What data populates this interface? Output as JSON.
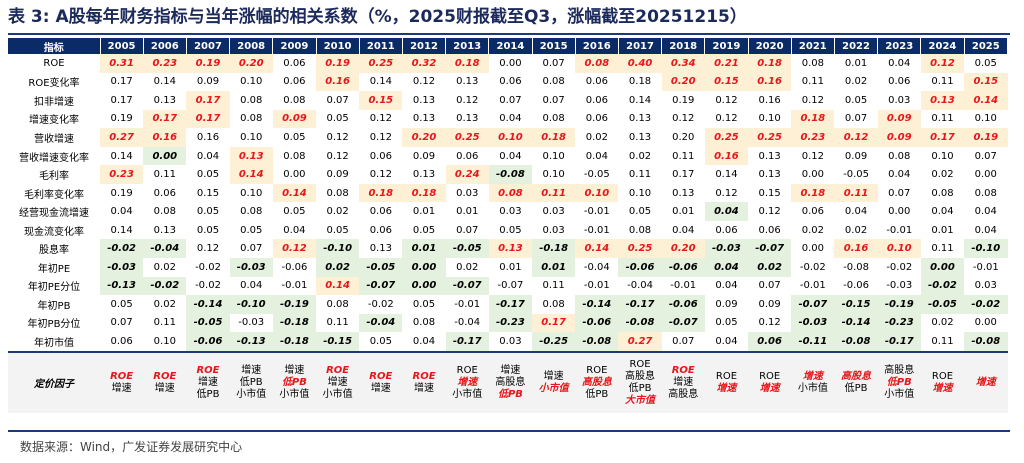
{
  "title": "表 3: A股每年财务指标与当年涨幅的相关系数（%，2025财报截至Q3，涨幅截至20251215）",
  "header_label": "指标",
  "years": [
    "2005",
    "2006",
    "2007",
    "2008",
    "2009",
    "2010",
    "2011",
    "2012",
    "2013",
    "2014",
    "2015",
    "2016",
    "2017",
    "2018",
    "2019",
    "2020",
    "2021",
    "2022",
    "2023",
    "2024",
    "2025"
  ],
  "highlight_legend": {
    "positive_color": "#fdf0d4",
    "positive_text": "#e8161b",
    "negative_color": "#e4f1de"
  },
  "rows": [
    {
      "label": "ROE",
      "values": [
        "0.31",
        "0.23",
        "0.19",
        "0.20",
        "0.06",
        "0.19",
        "0.25",
        "0.32",
        "0.18",
        "0.00",
        "0.07",
        "0.08",
        "0.40",
        "0.34",
        "0.21",
        "0.18",
        "0.08",
        "0.01",
        "0.04",
        "0.12",
        "0.05"
      ],
      "marks": [
        "p",
        "p",
        "p",
        "p",
        "",
        "p",
        "p",
        "p",
        "p",
        "",
        "",
        "p",
        "p",
        "p",
        "p",
        "p",
        "",
        "",
        "",
        "p",
        ""
      ]
    },
    {
      "label": "ROE变化率",
      "values": [
        "0.17",
        "0.14",
        "0.09",
        "0.10",
        "0.06",
        "0.16",
        "0.14",
        "0.12",
        "0.13",
        "0.06",
        "0.08",
        "0.06",
        "0.18",
        "0.20",
        "0.15",
        "0.16",
        "0.11",
        "0.02",
        "0.06",
        "0.11",
        "0.15"
      ],
      "marks": [
        "",
        "",
        "",
        "",
        "",
        "p",
        "",
        "",
        "",
        "",
        "",
        "",
        "",
        "p",
        "p",
        "p",
        "",
        "",
        "",
        "",
        "p"
      ]
    },
    {
      "label": "扣非增速",
      "values": [
        "0.17",
        "0.13",
        "0.17",
        "0.08",
        "0.08",
        "0.07",
        "0.15",
        "0.13",
        "0.12",
        "0.07",
        "0.07",
        "0.06",
        "0.14",
        "0.19",
        "0.12",
        "0.16",
        "0.12",
        "0.05",
        "0.03",
        "0.13",
        "0.14"
      ],
      "marks": [
        "",
        "",
        "p",
        "",
        "",
        "",
        "p",
        "",
        "",
        "",
        "",
        "",
        "",
        "",
        "",
        "",
        "",
        "",
        "",
        "p",
        "p"
      ]
    },
    {
      "label": "增速变化率",
      "values": [
        "0.19",
        "0.17",
        "0.17",
        "0.08",
        "0.09",
        "0.05",
        "0.12",
        "0.13",
        "0.13",
        "0.04",
        "0.08",
        "0.06",
        "0.13",
        "0.12",
        "0.12",
        "0.10",
        "0.18",
        "0.07",
        "0.09",
        "0.11",
        "0.10"
      ],
      "marks": [
        "",
        "p",
        "p",
        "",
        "p",
        "",
        "",
        "",
        "",
        "",
        "",
        "",
        "",
        "",
        "",
        "",
        "p",
        "",
        "p",
        "",
        ""
      ]
    },
    {
      "label": "营收增速",
      "values": [
        "0.27",
        "0.16",
        "0.16",
        "0.10",
        "0.05",
        "0.12",
        "0.12",
        "0.20",
        "0.25",
        "0.10",
        "0.18",
        "0.02",
        "0.13",
        "0.20",
        "0.25",
        "0.25",
        "0.23",
        "0.12",
        "0.09",
        "0.17",
        "0.19"
      ],
      "marks": [
        "p",
        "p",
        "",
        "",
        "",
        "",
        "",
        "p",
        "p",
        "p",
        "p",
        "",
        "",
        "",
        "p",
        "p",
        "p",
        "p",
        "p",
        "p",
        "p"
      ]
    },
    {
      "label": "营收增速变化率",
      "values": [
        "0.14",
        "0.00",
        "0.04",
        "0.13",
        "0.08",
        "0.12",
        "0.06",
        "0.09",
        "0.06",
        "0.04",
        "0.10",
        "0.04",
        "0.02",
        "0.11",
        "0.16",
        "0.13",
        "0.12",
        "0.09",
        "0.08",
        "0.10",
        "0.07"
      ],
      "marks": [
        "",
        "n",
        "",
        "p",
        "",
        "",
        "",
        "",
        "",
        "",
        "",
        "",
        "",
        "",
        "p",
        "",
        "",
        "",
        "",
        "",
        ""
      ]
    },
    {
      "label": "毛利率",
      "values": [
        "0.23",
        "0.11",
        "0.05",
        "0.14",
        "0.00",
        "0.09",
        "0.12",
        "0.13",
        "0.24",
        "-0.08",
        "0.10",
        "-0.05",
        "0.11",
        "0.17",
        "0.14",
        "0.13",
        "0.00",
        "-0.05",
        "0.04",
        "0.02",
        "0.00"
      ],
      "marks": [
        "p",
        "",
        "",
        "p",
        "",
        "",
        "",
        "",
        "p",
        "n",
        "",
        "",
        "",
        "",
        "",
        "",
        "",
        "",
        "",
        "",
        ""
      ]
    },
    {
      "label": "毛利率变化率",
      "values": [
        "0.19",
        "0.06",
        "0.15",
        "0.10",
        "0.14",
        "0.08",
        "0.18",
        "0.18",
        "0.03",
        "0.08",
        "0.11",
        "0.10",
        "0.10",
        "0.13",
        "0.12",
        "0.15",
        "0.18",
        "0.11",
        "0.07",
        "0.08",
        "0.08"
      ],
      "marks": [
        "",
        "",
        "",
        "",
        "p",
        "",
        "p",
        "p",
        "",
        "p",
        "p",
        "p",
        "",
        "",
        "",
        "",
        "p",
        "p",
        "",
        "",
        ""
      ]
    },
    {
      "label": "经营现金流增速",
      "values": [
        "0.04",
        "0.08",
        "0.05",
        "0.08",
        "0.05",
        "0.02",
        "0.06",
        "0.01",
        "0.01",
        "0.03",
        "0.03",
        "-0.01",
        "0.05",
        "0.01",
        "0.04",
        "0.12",
        "0.06",
        "0.04",
        "0.00",
        "0.04",
        "0.04"
      ],
      "marks": [
        "",
        "",
        "",
        "",
        "",
        "",
        "",
        "",
        "",
        "",
        "",
        "",
        "",
        "",
        "n",
        "",
        "",
        "",
        "",
        "",
        ""
      ]
    },
    {
      "label": "现金流变化率",
      "values": [
        "0.14",
        "0.13",
        "0.05",
        "0.05",
        "0.04",
        "0.05",
        "0.06",
        "0.05",
        "0.07",
        "0.05",
        "0.03",
        "-0.01",
        "0.08",
        "0.04",
        "0.06",
        "0.06",
        "0.02",
        "0.02",
        "-0.01",
        "0.01",
        "0.04"
      ],
      "marks": [
        "",
        "",
        "",
        "",
        "",
        "",
        "",
        "",
        "",
        "",
        "",
        "",
        "",
        "",
        "",
        "",
        "",
        "",
        "",
        "",
        ""
      ]
    },
    {
      "label": "股息率",
      "values": [
        "-0.02",
        "-0.04",
        "0.12",
        "0.07",
        "0.12",
        "-0.10",
        "0.13",
        "0.01",
        "-0.05",
        "0.13",
        "-0.18",
        "0.14",
        "0.25",
        "0.20",
        "-0.03",
        "-0.07",
        "0.00",
        "0.16",
        "0.10",
        "0.11",
        "-0.10"
      ],
      "marks": [
        "n",
        "n",
        "",
        "",
        "p",
        "n",
        "",
        "n",
        "n",
        "p",
        "n",
        "p",
        "p",
        "p",
        "n",
        "n",
        "",
        "p",
        "p",
        "",
        "n"
      ]
    },
    {
      "label": "年初PE",
      "values": [
        "-0.03",
        "0.02",
        "-0.02",
        "-0.03",
        "-0.06",
        "0.02",
        "-0.05",
        "0.00",
        "0.02",
        "0.01",
        "0.01",
        "-0.04",
        "-0.06",
        "-0.06",
        "0.04",
        "0.02",
        "-0.02",
        "-0.08",
        "-0.02",
        "0.00",
        "-0.01"
      ],
      "marks": [
        "n",
        "",
        "",
        "n",
        "",
        "n",
        "n",
        "n",
        "",
        "",
        "n",
        "",
        "n",
        "n",
        "n",
        "n",
        "",
        "",
        "",
        "n",
        ""
      ]
    },
    {
      "label": "年初PE分位",
      "values": [
        "-0.13",
        "-0.02",
        "-0.02",
        "0.04",
        "-0.01",
        "0.14",
        "-0.07",
        "0.00",
        "-0.07",
        "-0.07",
        "0.11",
        "-0.01",
        "-0.04",
        "-0.01",
        "0.04",
        "0.07",
        "-0.01",
        "-0.06",
        "-0.03",
        "-0.02",
        "0.03"
      ],
      "marks": [
        "n",
        "n",
        "",
        "",
        "",
        "p",
        "n",
        "n",
        "n",
        "",
        "",
        "",
        "",
        "",
        "",
        "",
        "",
        "",
        "",
        "n",
        ""
      ]
    },
    {
      "label": "年初PB",
      "values": [
        "0.05",
        "0.02",
        "-0.14",
        "-0.10",
        "-0.19",
        "0.08",
        "-0.02",
        "0.05",
        "-0.01",
        "-0.17",
        "0.08",
        "-0.14",
        "-0.17",
        "-0.06",
        "0.09",
        "0.09",
        "-0.07",
        "-0.15",
        "-0.19",
        "-0.05",
        "-0.02"
      ],
      "marks": [
        "",
        "",
        "n",
        "n",
        "n",
        "",
        "",
        "",
        "",
        "n",
        "",
        "n",
        "n",
        "n",
        "",
        "",
        "n",
        "n",
        "n",
        "n",
        "n"
      ]
    },
    {
      "label": "年初PB分位",
      "values": [
        "0.07",
        "0.11",
        "-0.05",
        "-0.03",
        "-0.18",
        "0.11",
        "-0.04",
        "0.08",
        "-0.04",
        "-0.23",
        "0.17",
        "-0.06",
        "-0.08",
        "-0.07",
        "0.05",
        "0.12",
        "-0.03",
        "-0.14",
        "-0.23",
        "0.02",
        "0.00"
      ],
      "marks": [
        "",
        "",
        "n",
        "",
        "n",
        "",
        "n",
        "",
        "",
        "n",
        "p",
        "n",
        "n",
        "n",
        "",
        "",
        "n",
        "n",
        "n",
        "",
        ""
      ]
    },
    {
      "label": "年初市值",
      "values": [
        "0.06",
        "0.10",
        "-0.06",
        "-0.13",
        "-0.18",
        "-0.15",
        "0.05",
        "0.04",
        "-0.17",
        "0.03",
        "-0.25",
        "-0.08",
        "0.27",
        "0.07",
        "0.04",
        "0.06",
        "-0.11",
        "-0.08",
        "-0.17",
        "0.11",
        "-0.08"
      ],
      "marks": [
        "",
        "",
        "n",
        "n",
        "n",
        "n",
        "",
        "",
        "n",
        "",
        "n",
        "n",
        "p",
        "",
        "",
        "n",
        "n",
        "n",
        "n",
        "",
        "n"
      ]
    }
  ],
  "factor_label": "定价因子",
  "factors": [
    [
      {
        "t": "ROE",
        "r": true
      },
      {
        "t": "增速",
        "r": false
      }
    ],
    [
      {
        "t": "ROE",
        "r": true
      },
      {
        "t": "增速",
        "r": false
      }
    ],
    [
      {
        "t": "ROE",
        "r": true
      },
      {
        "t": "增速",
        "r": false
      },
      {
        "t": "低PB",
        "r": false
      }
    ],
    [
      {
        "t": "增速",
        "r": false
      },
      {
        "t": "低PB",
        "r": false
      },
      {
        "t": "小市值",
        "r": false
      }
    ],
    [
      {
        "t": "增速",
        "r": false
      },
      {
        "t": "低PB",
        "r": true
      },
      {
        "t": "小市值",
        "r": false
      }
    ],
    [
      {
        "t": "ROE",
        "r": true
      },
      {
        "t": "增速",
        "r": false
      },
      {
        "t": "小市值",
        "r": false
      }
    ],
    [
      {
        "t": "ROE",
        "r": true
      },
      {
        "t": "增速",
        "r": false
      }
    ],
    [
      {
        "t": "ROE",
        "r": true
      },
      {
        "t": "增速",
        "r": false
      }
    ],
    [
      {
        "t": "ROE",
        "r": false
      },
      {
        "t": "增速",
        "r": true
      },
      {
        "t": "小市值",
        "r": false
      }
    ],
    [
      {
        "t": "增速",
        "r": false
      },
      {
        "t": "高股息",
        "r": false
      },
      {
        "t": "低PB",
        "r": true
      }
    ],
    [
      {
        "t": "增速",
        "r": false
      },
      {
        "t": "小市值",
        "r": true
      }
    ],
    [
      {
        "t": "ROE",
        "r": false
      },
      {
        "t": "高股息",
        "r": true
      },
      {
        "t": "低PB",
        "r": false
      }
    ],
    [
      {
        "t": "ROE",
        "r": false
      },
      {
        "t": "高股息",
        "r": false
      },
      {
        "t": "低PB",
        "r": false
      },
      {
        "t": "大市值",
        "r": true
      }
    ],
    [
      {
        "t": "ROE",
        "r": true
      },
      {
        "t": "增速",
        "r": false
      },
      {
        "t": "高股息",
        "r": false
      }
    ],
    [
      {
        "t": "ROE",
        "r": false
      },
      {
        "t": "增速",
        "r": true
      }
    ],
    [
      {
        "t": "ROE",
        "r": false
      },
      {
        "t": "增速",
        "r": true
      }
    ],
    [
      {
        "t": "增速",
        "r": true
      },
      {
        "t": "小市值",
        "r": false
      }
    ],
    [
      {
        "t": "高股息",
        "r": true
      },
      {
        "t": "低PB",
        "r": false
      }
    ],
    [
      {
        "t": "高股息",
        "r": false
      },
      {
        "t": "低PB",
        "r": true
      },
      {
        "t": "小市值",
        "r": false
      }
    ],
    [
      {
        "t": "ROE",
        "r": false
      },
      {
        "t": "增速",
        "r": true
      }
    ],
    [
      {
        "t": "增速",
        "r": true
      }
    ]
  ],
  "source": "数据来源：Wind，广发证券发展研究中心"
}
